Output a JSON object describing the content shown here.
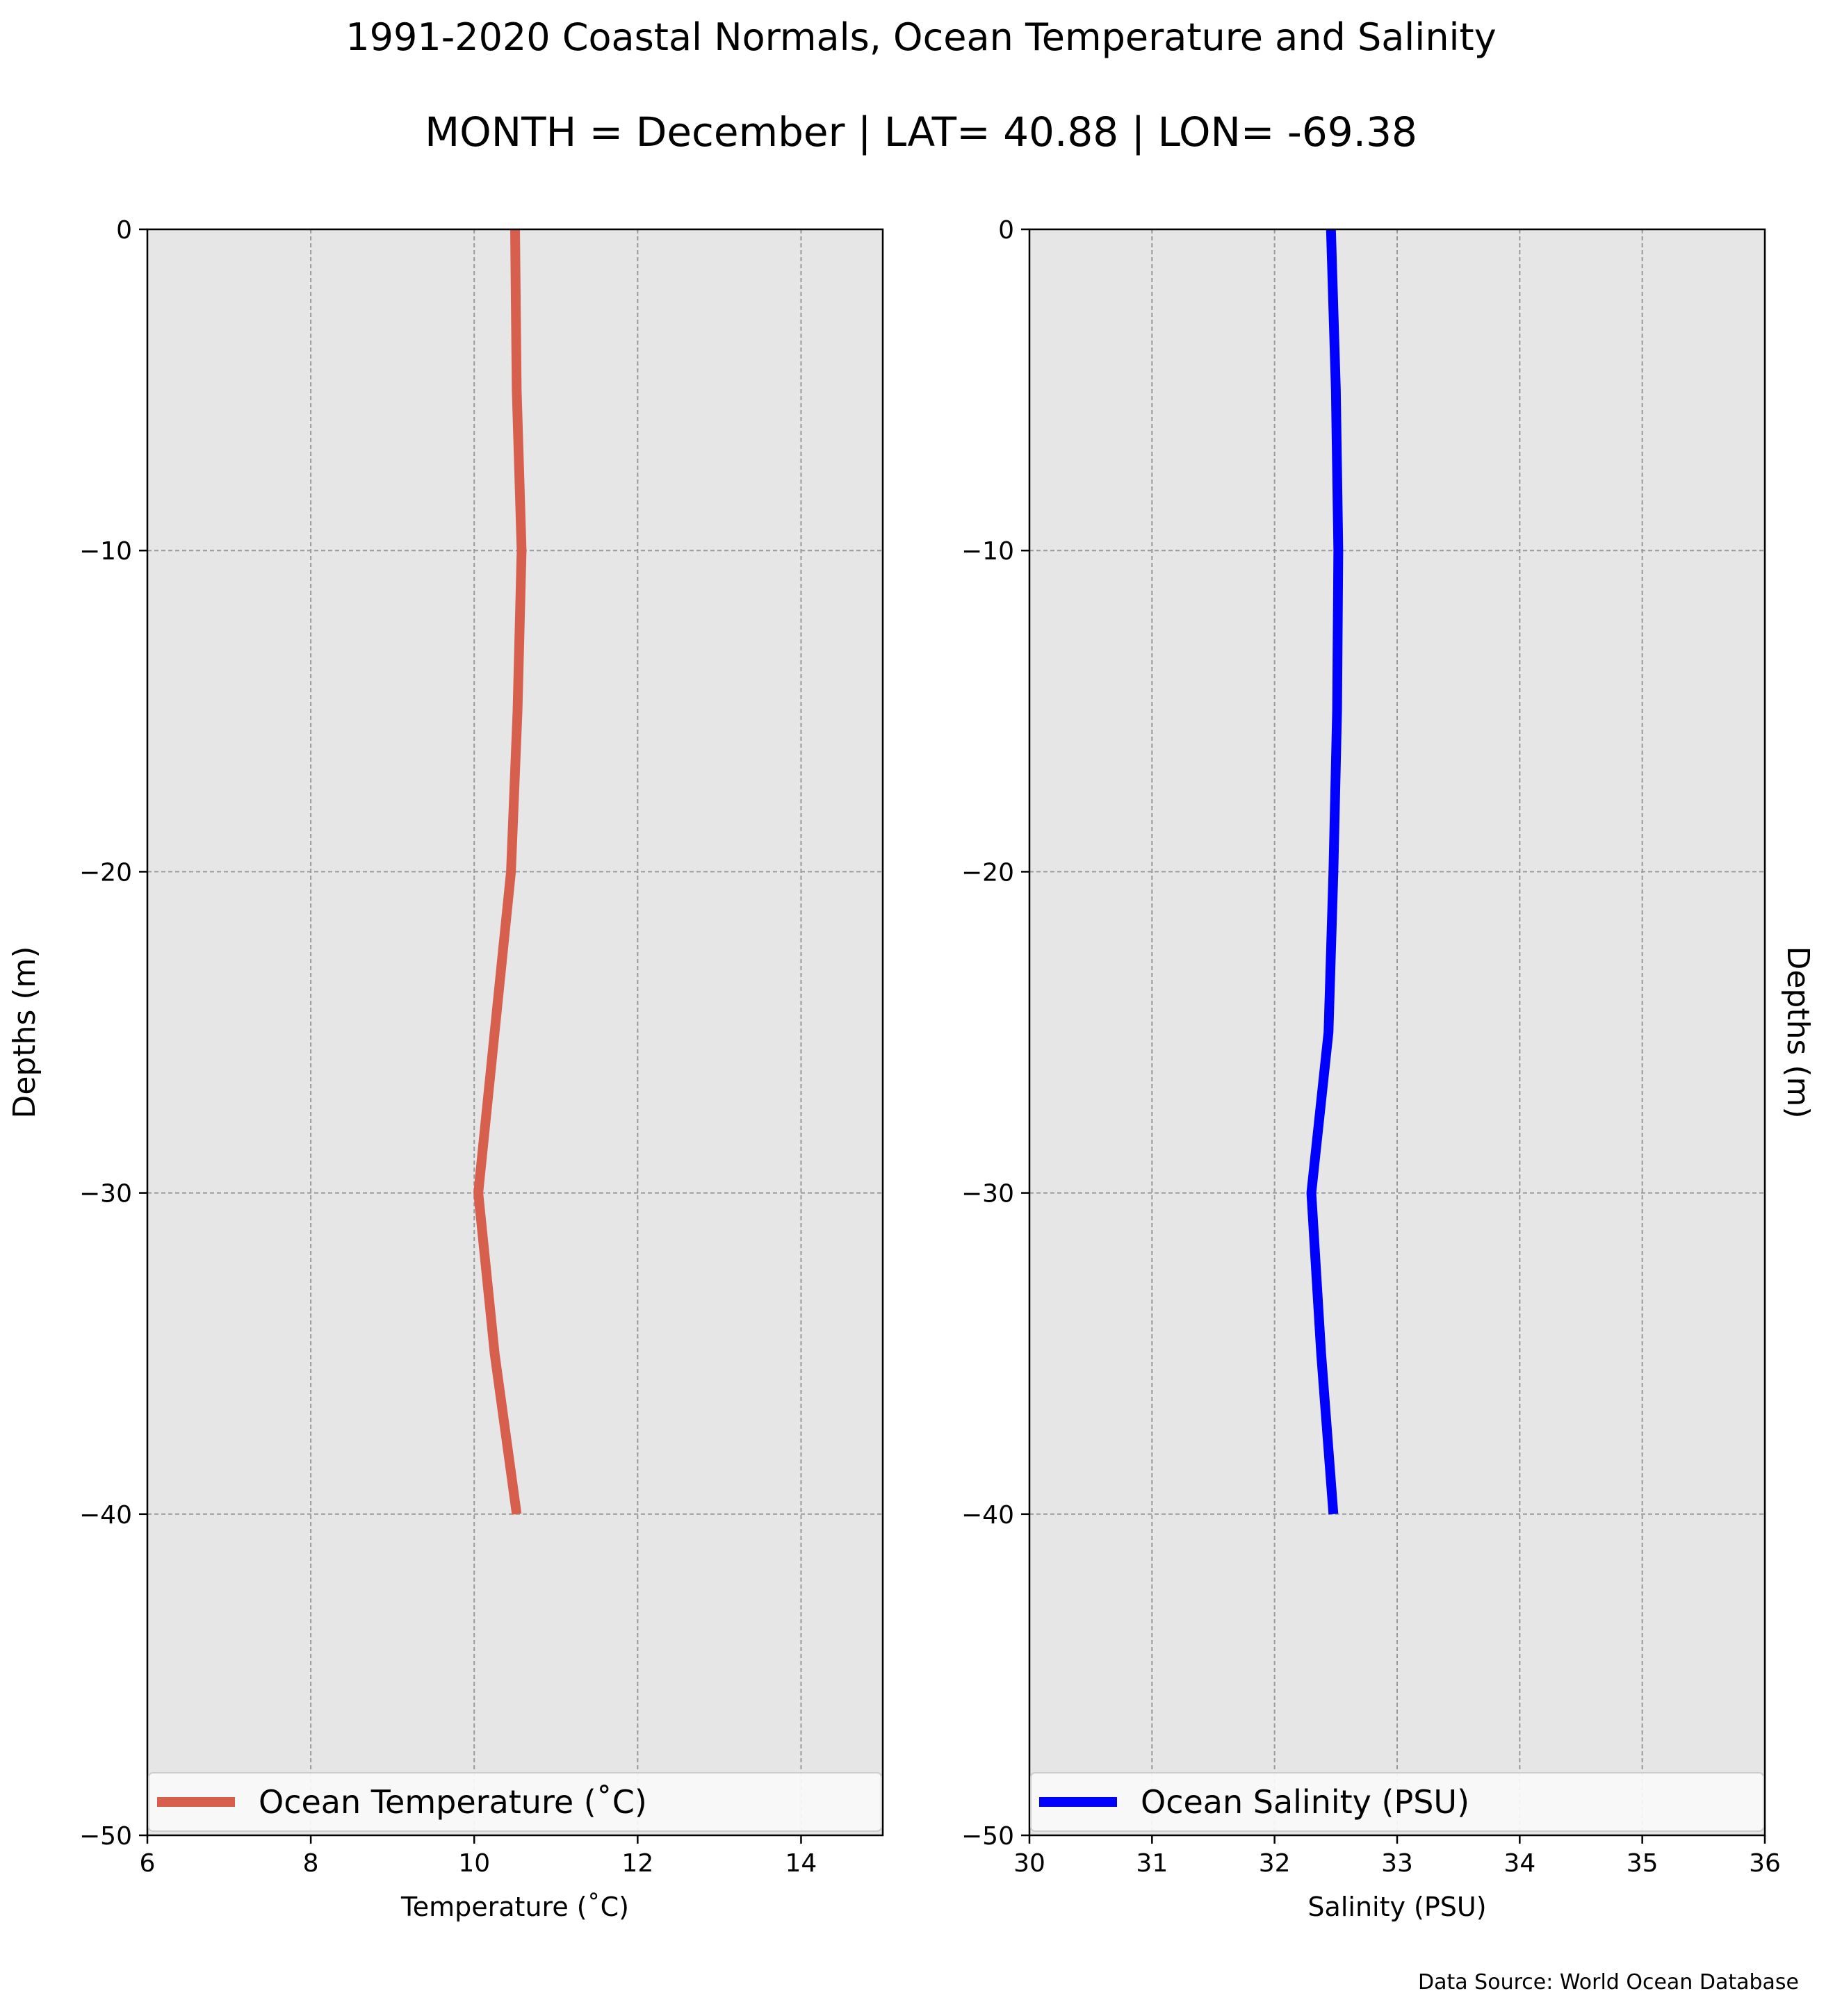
{
  "title": "1991-2020 Coastal Normals, Ocean Temperature and Salinity",
  "subtitle": "MONTH = December | LAT= 40.88 | LON= -69.38",
  "source_note": "Data Source: World Ocean Database",
  "colors": {
    "temperature": "#d65f4e",
    "salinity": "#0000ff",
    "plot_bg": "#e6e6e6",
    "grid": "#999999"
  },
  "chart_data": [
    {
      "type": "line",
      "xlabel": "Temperature ($^\\circ$C)",
      "xlabel_display": "Temperature (˚C)",
      "ylabel": "Depths (m)",
      "xlim": [
        6,
        15
      ],
      "ylim": [
        -50,
        0
      ],
      "x_ticks": [
        6,
        8,
        10,
        12,
        14
      ],
      "x_tick_labels": [
        "6",
        "8",
        "10",
        "12",
        "14"
      ],
      "y_ticks": [
        0,
        -10,
        -20,
        -30,
        -40,
        -50
      ],
      "y_tick_labels": [
        "0",
        "−10",
        "−20",
        "−30",
        "−40",
        "−50"
      ],
      "grid": true,
      "legend_position": "bottom",
      "series": [
        {
          "name": "Ocean Temperature (˚C)",
          "x": [
            10.5,
            10.52,
            10.58,
            10.53,
            10.45,
            10.05,
            10.25,
            10.52
          ],
          "y": [
            0,
            -5,
            -10,
            -15,
            -20,
            -30,
            -35,
            -40
          ]
        }
      ]
    },
    {
      "type": "line",
      "xlabel": "Salinity (PSU)",
      "ylabel": "Depths (m)",
      "xlim": [
        30,
        36
      ],
      "ylim": [
        -50,
        0
      ],
      "x_ticks": [
        30,
        31,
        32,
        33,
        34,
        35,
        36
      ],
      "x_tick_labels": [
        "30",
        "31",
        "32",
        "33",
        "34",
        "35",
        "36"
      ],
      "y_ticks": [
        0,
        -10,
        -20,
        -30,
        -40,
        -50
      ],
      "y_tick_labels": [
        "0",
        "−10",
        "−20",
        "−30",
        "−40",
        "−50"
      ],
      "grid": true,
      "legend_position": "bottom",
      "series": [
        {
          "name": "Ocean Salinity (PSU)",
          "x": [
            32.46,
            32.5,
            32.52,
            32.51,
            32.48,
            32.44,
            32.3,
            32.38,
            32.48
          ],
          "y": [
            0,
            -5,
            -10,
            -15,
            -20,
            -25,
            -30,
            -35,
            -40
          ]
        }
      ]
    }
  ]
}
